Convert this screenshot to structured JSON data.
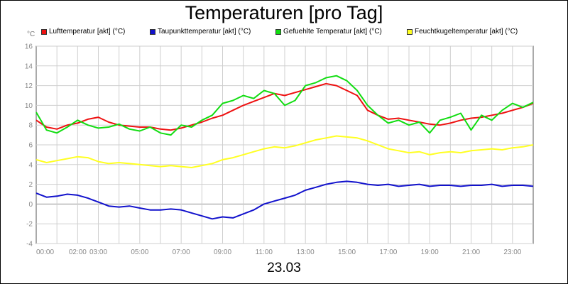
{
  "title": "Temperaturen [pro Tag]",
  "y_unit": "°C",
  "date_label": "23.03",
  "chart_data": {
    "type": "line",
    "title": "Temperaturen [pro Tag]",
    "xlabel": "23.03",
    "ylabel": "°C",
    "xlim": [
      0,
      24
    ],
    "ylim": [
      -4,
      16
    ],
    "y_ticks": [
      -4,
      -2,
      0,
      2,
      4,
      6,
      8,
      10,
      12,
      14,
      16
    ],
    "x_ticks": [
      {
        "label": "00:00",
        "x": 0
      },
      {
        "label": "02:00",
        "x": 2
      },
      {
        "label": "03:00",
        "x": 3
      },
      {
        "label": "05:00",
        "x": 5
      },
      {
        "label": "07:00",
        "x": 7
      },
      {
        "label": "09:00",
        "x": 9
      },
      {
        "label": "11:00",
        "x": 11
      },
      {
        "label": "13:00",
        "x": 13
      },
      {
        "label": "15:00",
        "x": 15
      },
      {
        "label": "17:00",
        "x": 17
      },
      {
        "label": "19:00",
        "x": 19
      },
      {
        "label": "21:00",
        "x": 21
      },
      {
        "label": "23:00",
        "x": 23
      }
    ],
    "grid": true,
    "legend_position": "top",
    "series": [
      {
        "name": "Lufttemperatur [akt] (°C)",
        "color": "#ee1111",
        "x": [
          0,
          0.5,
          1,
          1.5,
          2,
          2.5,
          3,
          3.5,
          4,
          4.5,
          5,
          5.5,
          6,
          6.5,
          7,
          7.5,
          8,
          8.5,
          9,
          9.5,
          10,
          10.5,
          11,
          11.5,
          12,
          12.5,
          13,
          13.5,
          14,
          14.5,
          15,
          15.5,
          16,
          16.5,
          17,
          17.5,
          18,
          18.5,
          19,
          19.5,
          20,
          20.5,
          21,
          21.5,
          22,
          22.5,
          23,
          23.5,
          24
        ],
        "y": [
          8.5,
          7.8,
          7.6,
          8.0,
          8.2,
          8.6,
          8.8,
          8.3,
          8.0,
          7.9,
          7.8,
          7.8,
          7.6,
          7.5,
          7.7,
          8.0,
          8.3,
          8.7,
          9.0,
          9.5,
          10.0,
          10.4,
          10.8,
          11.2,
          11.0,
          11.3,
          11.6,
          11.9,
          12.2,
          12.0,
          11.5,
          11.0,
          9.5,
          9.0,
          8.6,
          8.7,
          8.5,
          8.3,
          8.1,
          8.0,
          8.2,
          8.5,
          8.7,
          8.8,
          9.0,
          9.2,
          9.5,
          9.8,
          10.2
        ]
      },
      {
        "name": "Taupunkttemperatur [akt] (°C)",
        "color": "#1111cc",
        "x": [
          0,
          0.5,
          1,
          1.5,
          2,
          2.5,
          3,
          3.5,
          4,
          4.5,
          5,
          5.5,
          6,
          6.5,
          7,
          7.5,
          8,
          8.5,
          9,
          9.5,
          10,
          10.5,
          11,
          11.5,
          12,
          12.5,
          13,
          13.5,
          14,
          14.5,
          15,
          15.5,
          16,
          16.5,
          17,
          17.5,
          18,
          18.5,
          19,
          19.5,
          20,
          20.5,
          21,
          21.5,
          22,
          22.5,
          23,
          23.5,
          24
        ],
        "y": [
          1.1,
          0.7,
          0.8,
          1.0,
          0.9,
          0.6,
          0.2,
          -0.2,
          -0.3,
          -0.2,
          -0.4,
          -0.6,
          -0.6,
          -0.5,
          -0.6,
          -0.9,
          -1.2,
          -1.5,
          -1.3,
          -1.4,
          -1.0,
          -0.6,
          0.0,
          0.3,
          0.6,
          0.9,
          1.4,
          1.7,
          2.0,
          2.2,
          2.3,
          2.2,
          2.0,
          1.9,
          2.0,
          1.8,
          1.9,
          2.0,
          1.8,
          1.9,
          1.9,
          1.8,
          1.9,
          1.9,
          2.0,
          1.8,
          1.9,
          1.9,
          1.8
        ]
      },
      {
        "name": "Gefuehlte Temperatur [akt] (°C)",
        "color": "#11dd11",
        "x": [
          0,
          0.5,
          1,
          1.5,
          2,
          2.5,
          3,
          3.5,
          4,
          4.5,
          5,
          5.5,
          6,
          6.5,
          7,
          7.5,
          8,
          8.5,
          9,
          9.5,
          10,
          10.5,
          11,
          11.5,
          12,
          12.5,
          13,
          13.5,
          14,
          14.5,
          15,
          15.5,
          16,
          16.5,
          17,
          17.5,
          18,
          18.5,
          19,
          19.5,
          20,
          20.5,
          21,
          21.5,
          22,
          22.5,
          23,
          23.5,
          24
        ],
        "y": [
          9.3,
          7.5,
          7.2,
          7.8,
          8.5,
          8.0,
          7.7,
          7.8,
          8.1,
          7.6,
          7.4,
          7.8,
          7.2,
          7.0,
          8.0,
          7.8,
          8.5,
          9.0,
          10.2,
          10.5,
          11.0,
          10.7,
          11.5,
          11.2,
          10.0,
          10.5,
          12.0,
          12.3,
          12.8,
          13.0,
          12.5,
          11.5,
          10.0,
          9.0,
          8.2,
          8.5,
          8.0,
          8.3,
          7.2,
          8.5,
          8.8,
          9.2,
          7.5,
          9.0,
          8.5,
          9.5,
          10.2,
          9.8,
          10.3
        ]
      },
      {
        "name": "Feuchtkugeltemperatur [akt] (°C)",
        "color": "#ffff22",
        "x": [
          0,
          0.5,
          1,
          1.5,
          2,
          2.5,
          3,
          3.5,
          4,
          4.5,
          5,
          5.5,
          6,
          6.5,
          7,
          7.5,
          8,
          8.5,
          9,
          9.5,
          10,
          10.5,
          11,
          11.5,
          12,
          12.5,
          13,
          13.5,
          14,
          14.5,
          15,
          15.5,
          16,
          16.5,
          17,
          17.5,
          18,
          18.5,
          19,
          19.5,
          20,
          20.5,
          21,
          21.5,
          22,
          22.5,
          23,
          23.5,
          24
        ],
        "y": [
          4.5,
          4.2,
          4.4,
          4.6,
          4.8,
          4.7,
          4.3,
          4.1,
          4.2,
          4.1,
          4.0,
          3.9,
          3.8,
          3.9,
          3.8,
          3.7,
          3.9,
          4.1,
          4.5,
          4.7,
          5.0,
          5.3,
          5.6,
          5.8,
          5.7,
          5.9,
          6.2,
          6.5,
          6.7,
          6.9,
          6.8,
          6.7,
          6.4,
          6.0,
          5.6,
          5.4,
          5.2,
          5.3,
          5.0,
          5.2,
          5.3,
          5.2,
          5.4,
          5.5,
          5.6,
          5.5,
          5.7,
          5.8,
          6.0
        ]
      }
    ]
  }
}
